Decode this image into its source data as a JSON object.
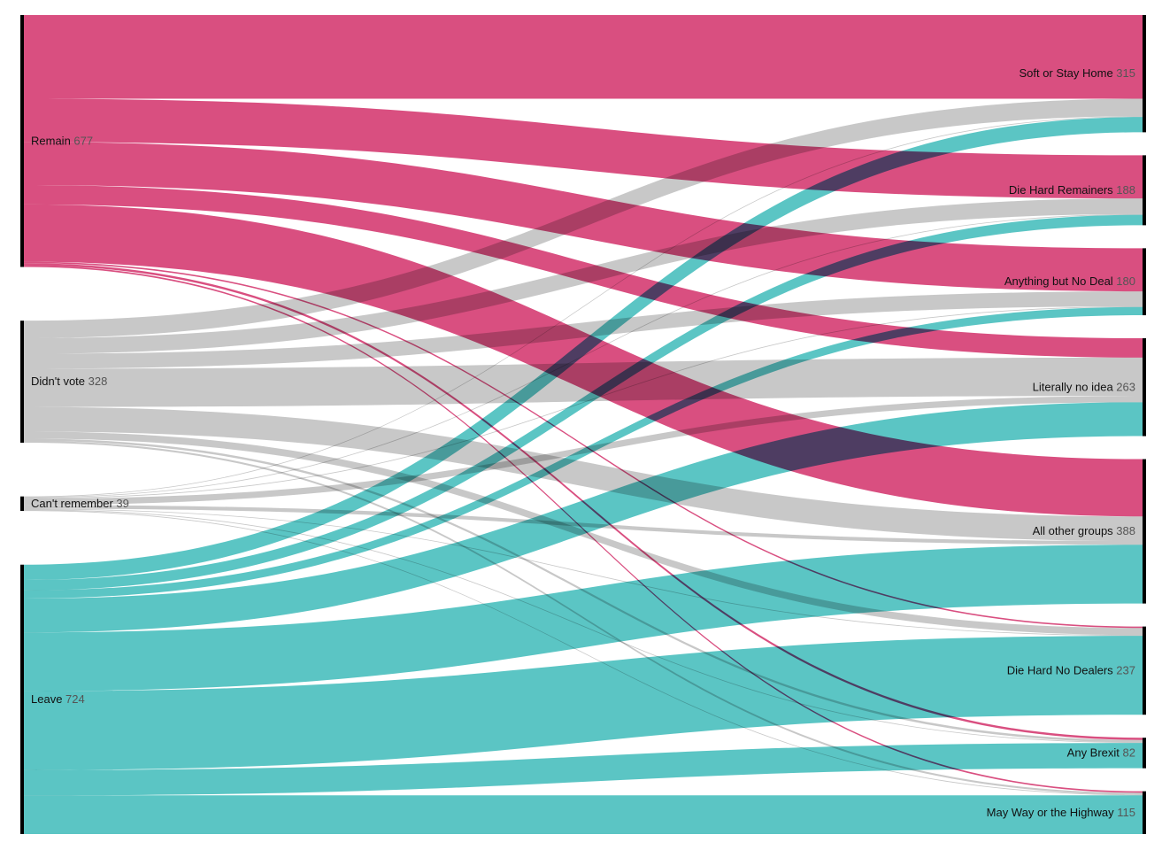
{
  "colors": {
    "remain": "#d94f80",
    "didnt_vote": "#c8c8c8",
    "cant_remember": "#c8c8c8",
    "leave": "#5bc5c4",
    "node_bar": "#000000"
  },
  "chart_data": {
    "type": "sankey",
    "sources": [
      {
        "id": "remain",
        "name": "Remain",
        "value": 677,
        "color_key": "remain"
      },
      {
        "id": "didnt_vote",
        "name": "Didn't vote",
        "value": 328,
        "color_key": "didnt_vote"
      },
      {
        "id": "cant_remember",
        "name": "Can't remember",
        "value": 39,
        "color_key": "cant_remember"
      },
      {
        "id": "leave",
        "name": "Leave",
        "value": 724,
        "color_key": "leave"
      }
    ],
    "targets": [
      {
        "id": "soft",
        "name": "Soft or Stay Home",
        "value": 315
      },
      {
        "id": "diehard_remain",
        "name": "Die Hard Remainers",
        "value": 188
      },
      {
        "id": "abnd",
        "name": "Anything but No Deal",
        "value": 180
      },
      {
        "id": "noidea",
        "name": "Literally no idea",
        "value": 263
      },
      {
        "id": "other",
        "name": "All other groups",
        "value": 388
      },
      {
        "id": "diehard_nodeal",
        "name": "Die Hard No Dealers",
        "value": 237
      },
      {
        "id": "anybrexit",
        "name": "Any Brexit",
        "value": 82
      },
      {
        "id": "myway",
        "name": "May Way or the Highway",
        "value": 115
      }
    ],
    "flows": [
      {
        "source": "remain",
        "target": "soft",
        "value": 225
      },
      {
        "source": "remain",
        "target": "diehard_remain",
        "value": 116
      },
      {
        "source": "remain",
        "target": "abnd",
        "value": 116
      },
      {
        "source": "remain",
        "target": "noidea",
        "value": 52
      },
      {
        "source": "remain",
        "target": "other",
        "value": 154
      },
      {
        "source": "remain",
        "target": "diehard_nodeal",
        "value": 4
      },
      {
        "source": "remain",
        "target": "anybrexit",
        "value": 6
      },
      {
        "source": "remain",
        "target": "myway",
        "value": 4
      },
      {
        "source": "didnt_vote",
        "target": "soft",
        "value": 47
      },
      {
        "source": "didnt_vote",
        "target": "diehard_remain",
        "value": 42
      },
      {
        "source": "didnt_vote",
        "target": "abnd",
        "value": 40
      },
      {
        "source": "didnt_vote",
        "target": "noidea",
        "value": 103
      },
      {
        "source": "didnt_vote",
        "target": "other",
        "value": 66
      },
      {
        "source": "didnt_vote",
        "target": "diehard_nodeal",
        "value": 19
      },
      {
        "source": "didnt_vote",
        "target": "anybrexit",
        "value": 6
      },
      {
        "source": "didnt_vote",
        "target": "myway",
        "value": 5
      },
      {
        "source": "cant_remember",
        "target": "soft",
        "value": 2
      },
      {
        "source": "cant_remember",
        "target": "diehard_remain",
        "value": 2
      },
      {
        "source": "cant_remember",
        "target": "abnd",
        "value": 2
      },
      {
        "source": "cant_remember",
        "target": "noidea",
        "value": 17
      },
      {
        "source": "cant_remember",
        "target": "other",
        "value": 10
      },
      {
        "source": "cant_remember",
        "target": "diehard_nodeal",
        "value": 2
      },
      {
        "source": "cant_remember",
        "target": "anybrexit",
        "value": 2
      },
      {
        "source": "cant_remember",
        "target": "myway",
        "value": 2
      },
      {
        "source": "leave",
        "target": "soft",
        "value": 41
      },
      {
        "source": "leave",
        "target": "diehard_remain",
        "value": 28
      },
      {
        "source": "leave",
        "target": "abnd",
        "value": 22
      },
      {
        "source": "leave",
        "target": "noidea",
        "value": 91
      },
      {
        "source": "leave",
        "target": "other",
        "value": 158
      },
      {
        "source": "leave",
        "target": "diehard_nodeal",
        "value": 212
      },
      {
        "source": "leave",
        "target": "anybrexit",
        "value": 68
      },
      {
        "source": "leave",
        "target": "myway",
        "value": 104
      }
    ]
  }
}
